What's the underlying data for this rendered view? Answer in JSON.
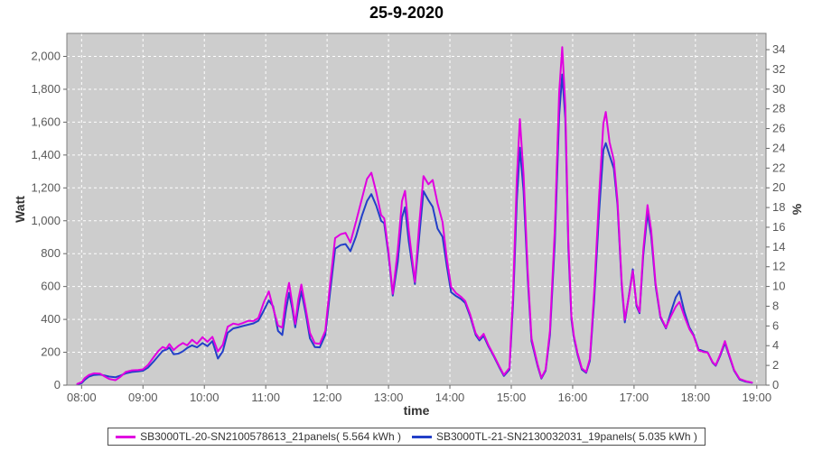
{
  "title": "25-9-2020",
  "axes": {
    "x_label": "time",
    "y_left_label": "Watt",
    "y_right_label": "%"
  },
  "legend": {
    "items": [
      {
        "label": "SB3000TL-20-SN2100578613_21panels( 5.564 kWh )",
        "color": "#e000e0"
      },
      {
        "label": "SB3000TL-21-SN2130032031_19panels( 5.035 kWh )",
        "color": "#2340c8"
      }
    ]
  },
  "chart_data": {
    "type": "line",
    "title": "25-9-2020",
    "xlabel": "time",
    "ylabel_left": "Watt",
    "ylabel_right": "%",
    "grid": true,
    "legend_position": "bottom",
    "plot_background": "#cdcdcd",
    "grid_color": "#ffffff",
    "border_color": "#808080",
    "tick_color": "#666666",
    "tick_label_color": "#595959",
    "x_axis": {
      "min": 7.76,
      "max": 19.15,
      "ticks": [
        8,
        9,
        10,
        11,
        12,
        13,
        14,
        15,
        16,
        17,
        18,
        19
      ],
      "tick_labels": [
        "08:00",
        "09:00",
        "10:00",
        "11:00",
        "12:00",
        "13:00",
        "14:00",
        "15:00",
        "16:00",
        "17:00",
        "18:00",
        "19:00"
      ]
    },
    "y_left": {
      "min": 0,
      "max": 2140,
      "ticks": [
        0,
        200,
        400,
        600,
        800,
        1000,
        1200,
        1400,
        1600,
        1800,
        2000
      ],
      "tick_labels": [
        "0",
        "200",
        "400",
        "600",
        "800",
        "1,000",
        "1,200",
        "1,400",
        "1,600",
        "1,800",
        "2,000"
      ]
    },
    "y_right": {
      "min": 0,
      "max": 35.65,
      "ticks": [
        0,
        2,
        4,
        6,
        8,
        10,
        12,
        14,
        16,
        18,
        20,
        22,
        24,
        26,
        28,
        30,
        32,
        34
      ],
      "tick_labels": [
        "0",
        "2",
        "4",
        "6",
        "8",
        "10",
        "12",
        "14",
        "16",
        "18",
        "20",
        "22",
        "24",
        "26",
        "28",
        "30",
        "32",
        "34"
      ]
    },
    "x": [
      7.93,
      8.0,
      8.05,
      8.12,
      8.2,
      8.3,
      8.38,
      8.45,
      8.55,
      8.63,
      8.72,
      8.82,
      8.92,
      9.0,
      9.08,
      9.17,
      9.25,
      9.32,
      9.38,
      9.43,
      9.5,
      9.58,
      9.65,
      9.72,
      9.8,
      9.88,
      9.97,
      10.05,
      10.13,
      10.22,
      10.3,
      10.38,
      10.47,
      10.55,
      10.63,
      10.72,
      10.8,
      10.88,
      10.97,
      11.05,
      11.12,
      11.2,
      11.27,
      11.33,
      11.38,
      11.43,
      11.48,
      11.53,
      11.58,
      11.65,
      11.72,
      11.8,
      11.88,
      11.97,
      12.05,
      12.13,
      12.22,
      12.3,
      12.38,
      12.47,
      12.57,
      12.65,
      12.72,
      12.8,
      12.88,
      12.93,
      13.0,
      13.07,
      13.15,
      13.22,
      13.27,
      13.33,
      13.43,
      13.5,
      13.57,
      13.65,
      13.72,
      13.8,
      13.88,
      13.95,
      14.02,
      14.1,
      14.18,
      14.25,
      14.33,
      14.42,
      14.48,
      14.55,
      14.63,
      14.72,
      14.8,
      14.88,
      14.97,
      15.03,
      15.09,
      15.14,
      15.2,
      15.27,
      15.33,
      15.43,
      15.49,
      15.56,
      15.63,
      15.71,
      15.78,
      15.83,
      15.88,
      15.93,
      15.98,
      16.02,
      16.08,
      16.15,
      16.22,
      16.28,
      16.35,
      16.43,
      16.5,
      16.54,
      16.6,
      16.67,
      16.73,
      16.8,
      16.85,
      16.92,
      16.98,
      17.04,
      17.09,
      17.15,
      17.22,
      17.28,
      17.35,
      17.43,
      17.52,
      17.6,
      17.68,
      17.74,
      17.82,
      17.9,
      17.97,
      18.05,
      18.13,
      18.2,
      18.28,
      18.33,
      18.4,
      18.48,
      18.55,
      18.63,
      18.72,
      18.82,
      18.92
    ],
    "series": [
      {
        "name": "SB3000TL-20-SN2100578613_21panels( 5.564 kWh )",
        "color": "#e000e0",
        "energy_kwh": 5.564,
        "values": [
          8,
          18,
          42,
          62,
          72,
          70,
          52,
          38,
          30,
          50,
          80,
          90,
          92,
          96,
          122,
          168,
          208,
          232,
          222,
          250,
          214,
          240,
          256,
          242,
          276,
          252,
          292,
          264,
          294,
          205,
          245,
          355,
          375,
          368,
          378,
          392,
          390,
          408,
          505,
          570,
          470,
          362,
          350,
          530,
          622,
          500,
          372,
          520,
          612,
          470,
          318,
          255,
          252,
          330,
          620,
          895,
          918,
          926,
          868,
          995,
          1140,
          1255,
          1292,
          1175,
          1035,
          1015,
          810,
          556,
          820,
          1120,
          1182,
          940,
          628,
          980,
          1272,
          1222,
          1248,
          1105,
          992,
          770,
          598,
          560,
          538,
          512,
          430,
          315,
          282,
          312,
          242,
          178,
          118,
          62,
          105,
          560,
          1250,
          1618,
          1280,
          680,
          285,
          125,
          45,
          95,
          330,
          950,
          1780,
          2056,
          1700,
          870,
          420,
          300,
          195,
          102,
          80,
          160,
          560,
          1150,
          1590,
          1662,
          1480,
          1368,
          1120,
          620,
          398,
          548,
          695,
          492,
          445,
          820,
          1095,
          940,
          620,
          420,
          350,
          420,
          478,
          506,
          420,
          342,
          300,
          212,
          202,
          198,
          140,
          122,
          182,
          268,
          185,
          92,
          38,
          24,
          16
        ]
      },
      {
        "name": "SB3000TL-21-SN2130032031_19panels( 5.035 kWh )",
        "color": "#2340c8",
        "energy_kwh": 5.035,
        "values": [
          5,
          12,
          32,
          52,
          62,
          64,
          58,
          52,
          48,
          58,
          72,
          80,
          84,
          88,
          106,
          142,
          178,
          208,
          216,
          228,
          188,
          192,
          206,
          226,
          242,
          230,
          256,
          237,
          268,
          162,
          205,
          318,
          345,
          352,
          360,
          368,
          376,
          392,
          455,
          515,
          480,
          330,
          305,
          460,
          562,
          470,
          352,
          470,
          572,
          440,
          285,
          232,
          230,
          305,
          570,
          830,
          852,
          858,
          815,
          905,
          1035,
          1120,
          1162,
          1092,
          1000,
          985,
          790,
          545,
          750,
          1020,
          1082,
          875,
          615,
          905,
          1180,
          1125,
          1085,
          952,
          902,
          725,
          565,
          542,
          524,
          500,
          418,
          305,
          272,
          300,
          235,
          172,
          112,
          56,
          95,
          500,
          1120,
          1445,
          1180,
          640,
          268,
          115,
          40,
          88,
          305,
          870,
          1640,
          1890,
          1620,
          830,
          400,
          288,
          185,
          95,
          75,
          148,
          510,
          1050,
          1430,
          1472,
          1400,
          1318,
          1095,
          600,
          382,
          556,
          705,
          482,
          438,
          790,
          1048,
          905,
          605,
          412,
          345,
          445,
          535,
          570,
          448,
          352,
          306,
          218,
          207,
          200,
          136,
          118,
          175,
          256,
          178,
          88,
          34,
          21,
          14
        ]
      }
    ]
  }
}
